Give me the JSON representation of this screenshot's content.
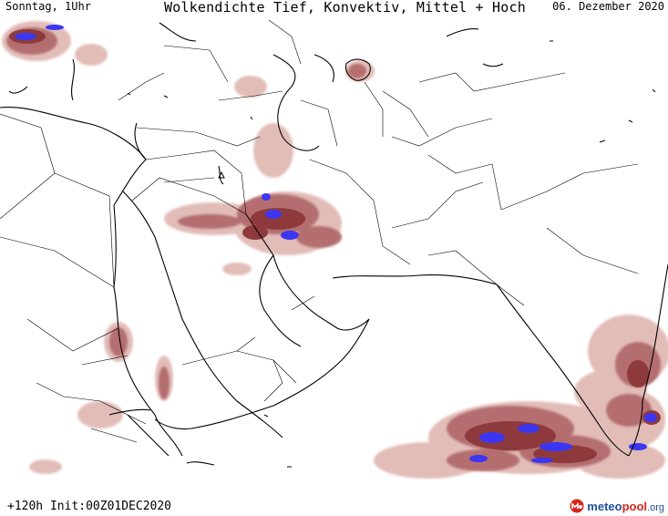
{
  "header": {
    "day_time": "Sonntag, 1Uhr",
    "title": "Wolkendichte  Tief, Konvektiv, Mittel + Hoch",
    "date": "06. Dezember 2020"
  },
  "footer": {
    "init": "+120h Init:00Z01DEC2020",
    "brand_a": "meteo",
    "brand_b": "pool",
    "brand_c": ".org"
  },
  "colors": {
    "coast": "#000000",
    "border": "#000000",
    "cloud_light": "#e7c8c4",
    "cloud_mid": "#c07f7f",
    "cloud_dark": "#8f3a3d",
    "cloud_convective": "#3b36f2"
  }
}
